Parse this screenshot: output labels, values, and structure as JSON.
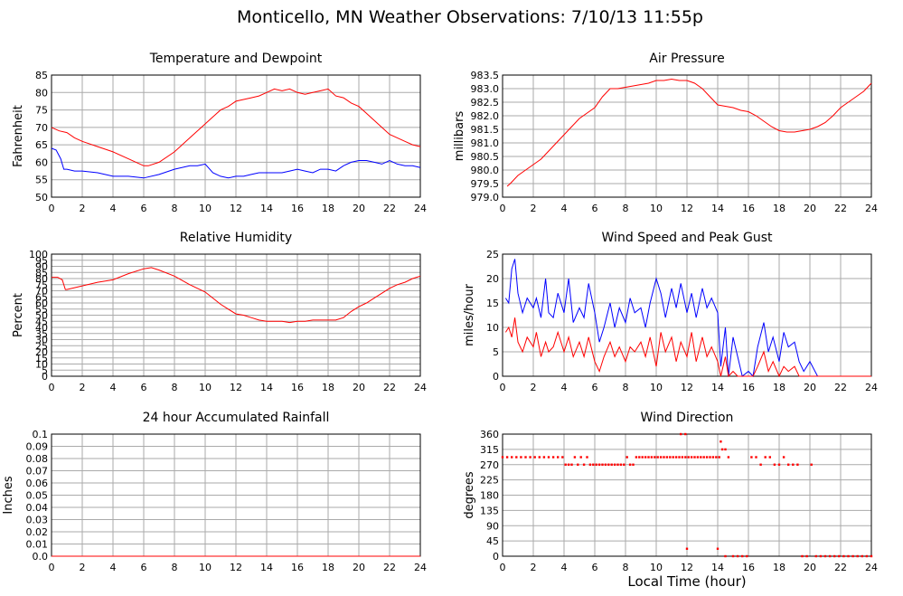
{
  "page": {
    "title": "Monticello, MN Weather Observations: 7/10/13 11:55p",
    "xaxis_label": "Local Time (hour)"
  },
  "colors": {
    "primary": "#ff0000",
    "secondary": "#0000ff",
    "grid": "#aaaaaa"
  },
  "chart_data": [
    {
      "id": "temp",
      "type": "line",
      "title": "Temperature and Dewpoint",
      "ylabel": "Fahrenheit",
      "xlim": [
        0,
        24
      ],
      "xticks": [
        0,
        2,
        4,
        6,
        8,
        10,
        12,
        14,
        16,
        18,
        20,
        22,
        24
      ],
      "ylim": [
        50,
        85
      ],
      "yticks": [
        50,
        55,
        60,
        65,
        70,
        75,
        80,
        85
      ],
      "ydec": 0,
      "grid": true,
      "series": [
        {
          "color": "#ff0000",
          "x": [
            0,
            0.5,
            1,
            1.5,
            2,
            3,
            4,
            5,
            5.5,
            6,
            6.3,
            7,
            8,
            9,
            10,
            10.5,
            11,
            11.5,
            12,
            12.5,
            13,
            13.5,
            14,
            14.5,
            15,
            15.5,
            16,
            16.5,
            17,
            17.5,
            18,
            18.5,
            19,
            19.5,
            20,
            20.5,
            21,
            21.5,
            22,
            22.5,
            23,
            23.5,
            24
          ],
          "y": [
            70,
            69,
            68.5,
            67,
            66,
            64.5,
            63,
            61,
            60,
            59,
            59,
            60,
            63,
            67,
            71,
            73,
            75,
            76,
            77.5,
            78,
            78.5,
            79,
            80,
            81,
            80.5,
            81,
            80,
            79.5,
            80,
            80.5,
            81,
            79,
            78.5,
            77,
            76,
            74,
            72,
            70,
            68,
            67,
            66,
            65,
            64.5
          ]
        },
        {
          "color": "#0000ff",
          "x": [
            0,
            0.3,
            0.6,
            0.8,
            1,
            1.5,
            2,
            3,
            4,
            5,
            6,
            7,
            8,
            9,
            9.5,
            10,
            10.5,
            11,
            11.5,
            12,
            12.5,
            13,
            13.5,
            14,
            14.5,
            15,
            15.5,
            16,
            16.5,
            17,
            17.5,
            18,
            18.5,
            19,
            19.5,
            20,
            20.5,
            21,
            21.5,
            22,
            22.5,
            23,
            23.5,
            24
          ],
          "y": [
            64,
            63.5,
            61,
            58,
            58,
            57.5,
            57.5,
            57,
            56,
            56,
            55.5,
            56.5,
            58,
            59,
            59,
            59.5,
            57,
            56,
            55.5,
            56,
            56,
            56.5,
            57,
            57,
            57,
            57,
            57.5,
            58,
            57.5,
            57,
            58,
            58,
            57.5,
            59,
            60,
            60.5,
            60.5,
            60,
            59.5,
            60.5,
            59.5,
            59,
            59,
            58.5
          ]
        }
      ]
    },
    {
      "id": "pres",
      "type": "line",
      "title": "Air Pressure",
      "ylabel": "millibars",
      "xlim": [
        0,
        24
      ],
      "xticks": [
        0,
        2,
        4,
        6,
        8,
        10,
        12,
        14,
        16,
        18,
        20,
        22,
        24
      ],
      "ylim": [
        979,
        983.5
      ],
      "yticks": [
        979.0,
        979.5,
        980.0,
        980.5,
        981.0,
        981.5,
        982.0,
        982.5,
        983.0,
        983.5
      ],
      "ydec": 1,
      "grid": true,
      "series": [
        {
          "color": "#ff0000",
          "x": [
            0.3,
            0.5,
            1,
            1.5,
            2,
            2.5,
            3,
            3.5,
            4,
            4.5,
            5,
            5.5,
            6,
            6.5,
            7,
            7.5,
            8,
            8.5,
            9,
            9.5,
            10,
            10.5,
            11,
            11.5,
            12,
            12.5,
            13,
            13.5,
            14,
            14.5,
            15,
            15.5,
            16,
            16.5,
            17,
            17.5,
            18,
            18.5,
            19,
            19.5,
            20,
            20.5,
            21,
            21.5,
            22,
            22.5,
            23,
            23.5,
            24
          ],
          "y": [
            979.4,
            979.5,
            979.8,
            980,
            980.2,
            980.4,
            980.7,
            981,
            981.3,
            981.6,
            981.9,
            982.1,
            982.3,
            982.7,
            983.0,
            983.0,
            983.05,
            983.1,
            983.15,
            983.2,
            983.3,
            983.3,
            983.35,
            983.3,
            983.3,
            983.2,
            983.0,
            982.7,
            982.4,
            982.35,
            982.3,
            982.2,
            982.15,
            982.0,
            981.8,
            981.6,
            981.45,
            981.4,
            981.4,
            981.45,
            981.5,
            981.6,
            981.75,
            982.0,
            982.3,
            982.5,
            982.7,
            982.9,
            983.2
          ]
        }
      ]
    },
    {
      "id": "rh",
      "type": "line",
      "title": "Relative Humidity",
      "ylabel": "Percent",
      "xlim": [
        0,
        24
      ],
      "xticks": [
        0,
        2,
        4,
        6,
        8,
        10,
        12,
        14,
        16,
        18,
        20,
        22,
        24
      ],
      "ylim": [
        0,
        100
      ],
      "yticks": [
        0,
        5,
        10,
        15,
        20,
        25,
        30,
        35,
        40,
        45,
        50,
        55,
        60,
        65,
        70,
        75,
        80,
        85,
        90,
        95,
        100
      ],
      "ydec": 0,
      "grid": true,
      "series": [
        {
          "color": "#ff0000",
          "x": [
            0,
            0.4,
            0.7,
            0.9,
            1,
            2,
            3,
            4,
            5,
            6,
            6.5,
            7,
            8,
            9,
            10,
            10.5,
            11,
            11.5,
            12,
            12.5,
            13,
            13.5,
            14,
            14.5,
            15,
            15.5,
            16,
            16.5,
            17,
            17.5,
            18,
            18.5,
            19,
            19.5,
            20,
            20.5,
            21,
            21.5,
            22,
            22.5,
            23,
            23.5,
            24
          ],
          "y": [
            81,
            81,
            79,
            71,
            71,
            74,
            77,
            79,
            84,
            88,
            89,
            87,
            82,
            75,
            69,
            64,
            59,
            55,
            51,
            50,
            48,
            46,
            45,
            45,
            45,
            44,
            45,
            45,
            46,
            46,
            46,
            46,
            48,
            53,
            57,
            60,
            64,
            68,
            72,
            75,
            77,
            80,
            82
          ]
        }
      ]
    },
    {
      "id": "wind",
      "type": "line",
      "title": "Wind Speed and Peak Gust",
      "ylabel": "miles/hour",
      "xlim": [
        0,
        24
      ],
      "xticks": [
        0,
        2,
        4,
        6,
        8,
        10,
        12,
        14,
        16,
        18,
        20,
        22,
        24
      ],
      "ylim": [
        0,
        25
      ],
      "yticks": [
        0,
        5,
        10,
        15,
        20,
        25
      ],
      "ydec": 0,
      "grid": true,
      "series": [
        {
          "color": "#0000ff",
          "x": [
            0.2,
            0.4,
            0.6,
            0.8,
            1,
            1.3,
            1.6,
            2,
            2.2,
            2.5,
            2.8,
            3,
            3.3,
            3.6,
            4,
            4.3,
            4.6,
            5,
            5.3,
            5.6,
            6,
            6.3,
            6.6,
            7,
            7.3,
            7.6,
            8,
            8.3,
            8.6,
            9,
            9.3,
            9.6,
            10,
            10.3,
            10.6,
            11,
            11.3,
            11.6,
            12,
            12.3,
            12.6,
            13,
            13.3,
            13.6,
            14,
            14.2,
            14.5,
            14.7,
            15,
            15.3,
            15.6,
            16,
            16.3,
            16.6,
            17,
            17.3,
            17.6,
            18,
            18.3,
            18.6,
            19,
            19.3,
            19.6,
            20,
            20.5,
            21,
            22,
            23,
            24
          ],
          "y": [
            16,
            15,
            22,
            24,
            17,
            13,
            16,
            14,
            16,
            12,
            20,
            13,
            12,
            17,
            13,
            20,
            11,
            14,
            12,
            19,
            13,
            7,
            10,
            15,
            10,
            14,
            11,
            16,
            13,
            14,
            10,
            15,
            20,
            17,
            12,
            18,
            14,
            19,
            13,
            17,
            12,
            18,
            14,
            16,
            13,
            2,
            10,
            0,
            8,
            4,
            0,
            1,
            0,
            6,
            11,
            5,
            8,
            3,
            9,
            6,
            7,
            3,
            1,
            3,
            0,
            0,
            0,
            0,
            0
          ]
        },
        {
          "color": "#ff0000",
          "x": [
            0.2,
            0.4,
            0.6,
            0.8,
            1,
            1.3,
            1.6,
            2,
            2.2,
            2.5,
            2.8,
            3,
            3.3,
            3.6,
            4,
            4.3,
            4.6,
            5,
            5.3,
            5.6,
            6,
            6.3,
            6.6,
            7,
            7.3,
            7.6,
            8,
            8.3,
            8.6,
            9,
            9.3,
            9.6,
            10,
            10.3,
            10.6,
            11,
            11.3,
            11.6,
            12,
            12.3,
            12.6,
            13,
            13.3,
            13.6,
            14,
            14.2,
            14.5,
            14.7,
            15,
            15.3,
            15.6,
            16,
            16.3,
            16.6,
            17,
            17.3,
            17.6,
            18,
            18.3,
            18.6,
            19,
            19.3,
            19.6,
            20,
            20.5,
            21,
            22,
            23,
            24
          ],
          "y": [
            9,
            10,
            8,
            12,
            7,
            5,
            8,
            6,
            9,
            4,
            7,
            5,
            6,
            9,
            5,
            8,
            4,
            7,
            4,
            8,
            3,
            1,
            4,
            7,
            4,
            6,
            3,
            6,
            5,
            7,
            4,
            8,
            2,
            9,
            5,
            8,
            3,
            7,
            4,
            9,
            3,
            8,
            4,
            6,
            3,
            0,
            4,
            0,
            1,
            0,
            0,
            0,
            0,
            2,
            5,
            1,
            3,
            0,
            2,
            1,
            2,
            0,
            0,
            0,
            0,
            0,
            0,
            0,
            0
          ]
        }
      ]
    },
    {
      "id": "rain",
      "type": "line",
      "title": "24 hour Accumulated Rainfall",
      "ylabel": "Inches",
      "xlim": [
        0,
        24
      ],
      "xticks": [
        0,
        2,
        4,
        6,
        8,
        10,
        12,
        14,
        16,
        18,
        20,
        22,
        24
      ],
      "ylim": [
        0,
        0.1
      ],
      "yticks": [
        0.0,
        0.01,
        0.02,
        0.03,
        0.04,
        0.05,
        0.06,
        0.07,
        0.08,
        0.09,
        0.1
      ],
      "ydec": -1,
      "grid": true,
      "series": [
        {
          "color": "#ff0000",
          "x": [
            0,
            24
          ],
          "y": [
            0,
            0
          ]
        }
      ]
    },
    {
      "id": "wdir",
      "type": "scatter",
      "title": "Wind Direction",
      "ylabel": "degrees",
      "xlim": [
        0,
        24
      ],
      "xticks": [
        0,
        2,
        4,
        6,
        8,
        10,
        12,
        14,
        16,
        18,
        20,
        22,
        24
      ],
      "ylim": [
        0,
        360
      ],
      "yticks": [
        0,
        45,
        90,
        135,
        180,
        225,
        270,
        315,
        360
      ],
      "ydec": 0,
      "grid": true,
      "series": [
        {
          "color": "#ff0000",
          "x": [
            0,
            0.3,
            0.6,
            0.9,
            1.2,
            1.5,
            1.8,
            2.1,
            2.4,
            2.7,
            3,
            3.3,
            3.6,
            3.9,
            4.1,
            4.3,
            4.5,
            4.7,
            4.9,
            5.1,
            5.3,
            5.5,
            5.7,
            5.9,
            6.1,
            6.3,
            6.5,
            6.7,
            6.9,
            7.1,
            7.3,
            7.5,
            7.7,
            7.9,
            8.1,
            8.3,
            8.5,
            8.7,
            8.9,
            9.1,
            9.3,
            9.5,
            9.7,
            9.9,
            10.1,
            10.3,
            10.5,
            10.7,
            10.9,
            11.1,
            11.3,
            11.5,
            11.7,
            11.9,
            12.1,
            12.3,
            12.5,
            12.7,
            12.9,
            13.1,
            13.3,
            13.5,
            13.7,
            13.9,
            14.1,
            14.3,
            14.5,
            14.7,
            15,
            15.3,
            15.6,
            15.9,
            16.2,
            16.5,
            16.8,
            17.1,
            17.4,
            17.7,
            18,
            18.3,
            18.6,
            18.9,
            19.2,
            19.5,
            19.8,
            20.1,
            20.4,
            20.7,
            21,
            21.3,
            21.6,
            21.9,
            22.2,
            22.5,
            22.8,
            23.1,
            23.4,
            23.7,
            24,
            11.6,
            11.9,
            14.2,
            14.5,
            12,
            14
          ],
          "y": [
            292,
            292,
            292,
            292,
            292,
            292,
            292,
            292,
            292,
            292,
            292,
            292,
            292,
            292,
            270,
            270,
            270,
            292,
            270,
            292,
            270,
            292,
            270,
            270,
            270,
            270,
            270,
            270,
            270,
            270,
            270,
            270,
            270,
            270,
            292,
            270,
            270,
            292,
            292,
            292,
            292,
            292,
            292,
            292,
            292,
            292,
            292,
            292,
            292,
            292,
            292,
            292,
            292,
            292,
            292,
            292,
            292,
            292,
            292,
            292,
            292,
            292,
            292,
            292,
            292,
            315,
            315,
            292,
            0,
            0,
            0,
            0,
            292,
            292,
            270,
            292,
            292,
            270,
            270,
            292,
            270,
            270,
            270,
            0,
            0,
            270,
            0,
            0,
            0,
            0,
            0,
            0,
            0,
            0,
            0,
            0,
            0,
            0,
            0,
            360,
            360,
            338,
            0,
            22,
            22
          ]
        }
      ]
    }
  ]
}
